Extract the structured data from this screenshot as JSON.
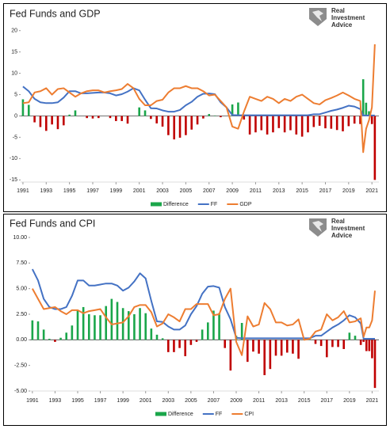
{
  "chart_data": [
    {
      "type": "combo",
      "title": "Fed Funds and GDP",
      "logo": [
        "Real",
        "Investment",
        "Advice"
      ],
      "x": [
        1991,
        1991.5,
        1992,
        1992.5,
        1993,
        1993.5,
        1994,
        1994.5,
        1995,
        1995.5,
        1996,
        1996.5,
        1997,
        1997.5,
        1998,
        1998.5,
        1999,
        1999.5,
        2000,
        2000.5,
        2001,
        2001.5,
        2002,
        2002.5,
        2003,
        2003.5,
        2004,
        2004.5,
        2005,
        2005.5,
        2006,
        2006.5,
        2007,
        2007.5,
        2008,
        2008.5,
        2009,
        2009.5,
        2010,
        2010.5,
        2011,
        2011.5,
        2012,
        2012.5,
        2013,
        2013.5,
        2014,
        2014.5,
        2015,
        2015.5,
        2016,
        2016.5,
        2017,
        2017.5,
        2018,
        2018.5,
        2019,
        2019.5,
        2020,
        2020.25,
        2020.5,
        2020.75,
        2021,
        2021.25
      ],
      "series": [
        {
          "name": "Difference",
          "type": "bar",
          "color": "#1aa64a",
          "negative_color": "#c00000",
          "values": [
            3.9,
            2.6,
            -1.5,
            -2.6,
            -3.5,
            -2.0,
            -3.1,
            -2.2,
            0.3,
            1.3,
            0.0,
            -0.5,
            -0.6,
            -0.5,
            0.0,
            -0.5,
            -1.2,
            -1.2,
            -1.8,
            0.0,
            2.0,
            1.3,
            -0.7,
            -1.75,
            -2.5,
            -4.5,
            -5.5,
            -5.1,
            -4.5,
            -3.2,
            -2.0,
            -0.6,
            0.45,
            0.1,
            -0.3,
            0.0,
            2.7,
            3.15,
            -0.85,
            -4.35,
            -3.85,
            -3.35,
            -4.35,
            -3.85,
            -2.85,
            -3.85,
            -3.35,
            -4.35,
            -4.85,
            -3.85,
            -2.6,
            -2.3,
            -2.9,
            -3.0,
            -3.3,
            -3.6,
            -2.4,
            -1.8,
            -1.9,
            8.6,
            3.1,
            1.1,
            -1.9,
            -15.0
          ]
        },
        {
          "name": "FF",
          "type": "line",
          "color": "#4472c4",
          "values": [
            6.9,
            5.8,
            4.0,
            3.2,
            3.0,
            3.0,
            3.2,
            4.3,
            5.8,
            5.8,
            5.3,
            5.3,
            5.4,
            5.5,
            5.5,
            5.3,
            4.8,
            5.1,
            5.7,
            6.5,
            6.0,
            3.8,
            1.8,
            1.75,
            1.3,
            1.0,
            1.0,
            1.4,
            2.5,
            3.3,
            4.5,
            5.2,
            5.25,
            5.1,
            3.2,
            2.0,
            0.2,
            0.15,
            0.15,
            0.15,
            0.15,
            0.15,
            0.15,
            0.15,
            0.15,
            0.15,
            0.15,
            0.15,
            0.15,
            0.15,
            0.4,
            0.4,
            0.8,
            1.2,
            1.5,
            1.9,
            2.4,
            2.2,
            1.6,
            0.1,
            0.1,
            0.1,
            0.1,
            0.1
          ]
        },
        {
          "name": "GDP",
          "type": "line",
          "color": "#ed7d31",
          "values": [
            3.0,
            3.2,
            5.5,
            5.8,
            6.5,
            5.0,
            6.3,
            6.5,
            5.5,
            4.5,
            5.3,
            5.8,
            6.0,
            6.0,
            5.5,
            5.8,
            6.0,
            6.3,
            7.5,
            6.5,
            4.0,
            2.5,
            2.5,
            3.5,
            3.8,
            5.5,
            6.5,
            6.5,
            7.0,
            6.5,
            6.5,
            5.8,
            4.8,
            5.0,
            3.5,
            2.0,
            -2.5,
            -3.0,
            1.0,
            4.5,
            4.0,
            3.5,
            4.5,
            4.0,
            3.0,
            4.0,
            3.5,
            4.5,
            5.0,
            4.0,
            3.0,
            2.7,
            3.7,
            4.2,
            4.8,
            5.5,
            4.8,
            4.0,
            3.5,
            -8.5,
            -3.0,
            -1.0,
            2.0,
            16.8
          ]
        }
      ],
      "xlim": [
        1990.8,
        2021.6
      ],
      "xticks": [
        1991,
        1993,
        1995,
        1997,
        1999,
        2001,
        2003,
        2005,
        2007,
        2009,
        2011,
        2013,
        2015,
        2017,
        2019,
        2021
      ],
      "ylim": [
        -15.5,
        20.5
      ],
      "yticks": [
        -15,
        -10,
        -5,
        0,
        5,
        10,
        15,
        20
      ],
      "grid": false,
      "legend": "bottom"
    },
    {
      "type": "combo",
      "title": "Fed Funds and CPI",
      "logo": [
        "Real",
        "Investment",
        "Advice"
      ],
      "x": [
        1991,
        1991.5,
        1992,
        1992.5,
        1993,
        1993.5,
        1994,
        1994.5,
        1995,
        1995.5,
        1996,
        1996.5,
        1997,
        1997.5,
        1998,
        1998.5,
        1999,
        1999.5,
        2000,
        2000.5,
        2001,
        2001.5,
        2002,
        2002.5,
        2003,
        2003.5,
        2004,
        2004.5,
        2005,
        2005.5,
        2006,
        2006.5,
        2007,
        2007.5,
        2008,
        2008.5,
        2009,
        2009.5,
        2010,
        2010.5,
        2011,
        2011.5,
        2012,
        2012.5,
        2013,
        2013.5,
        2014,
        2014.5,
        2015,
        2015.5,
        2016,
        2016.5,
        2017,
        2017.5,
        2018,
        2018.5,
        2019,
        2019.5,
        2020,
        2020.25,
        2020.5,
        2020.75,
        2021,
        2021.25
      ],
      "series": [
        {
          "name": "Difference",
          "type": "bar",
          "color": "#1aa64a",
          "negative_color": "#c00000",
          "values": [
            1.9,
            1.8,
            1.0,
            0.1,
            -0.2,
            0.2,
            0.7,
            1.4,
            2.9,
            3.2,
            2.5,
            2.4,
            2.4,
            3.3,
            4.0,
            3.7,
            3.1,
            2.8,
            2.5,
            3.1,
            2.6,
            1.1,
            0.5,
            0.15,
            -1.2,
            -1.2,
            -0.8,
            -1.6,
            -0.5,
            -0.2,
            1.0,
            1.7,
            2.85,
            2.6,
            -0.8,
            -3.0,
            0.4,
            1.65,
            -2.15,
            -1.15,
            -1.35,
            -3.45,
            -2.85,
            -1.55,
            -1.55,
            -1.25,
            -1.35,
            -1.85,
            0.15,
            0.05,
            -0.4,
            -0.6,
            -1.7,
            -0.7,
            -0.7,
            -0.9,
            0.7,
            0.4,
            -0.5,
            -0.2,
            -1.1,
            -1.1,
            -1.8,
            -4.7
          ]
        },
        {
          "name": "FF",
          "type": "line",
          "color": "#4472c4",
          "values": [
            6.9,
            5.8,
            4.0,
            3.2,
            3.0,
            3.0,
            3.2,
            4.3,
            5.8,
            5.8,
            5.3,
            5.3,
            5.4,
            5.5,
            5.5,
            5.3,
            4.8,
            5.1,
            5.7,
            6.5,
            6.0,
            3.8,
            1.8,
            1.75,
            1.3,
            1.0,
            1.0,
            1.4,
            2.5,
            3.3,
            4.5,
            5.2,
            5.25,
            5.1,
            3.2,
            2.0,
            0.2,
            0.15,
            0.15,
            0.15,
            0.15,
            0.15,
            0.15,
            0.15,
            0.15,
            0.15,
            0.15,
            0.15,
            0.15,
            0.15,
            0.4,
            0.4,
            0.8,
            1.2,
            1.5,
            1.9,
            2.4,
            2.2,
            1.6,
            0.1,
            0.1,
            0.1,
            0.1,
            0.1
          ]
        },
        {
          "name": "CPI",
          "type": "line",
          "color": "#ed7d31",
          "values": [
            5.0,
            4.0,
            3.0,
            3.1,
            3.2,
            2.8,
            2.5,
            2.9,
            2.9,
            2.6,
            2.8,
            2.9,
            3.0,
            2.2,
            1.5,
            1.6,
            1.7,
            2.3,
            3.2,
            3.4,
            3.4,
            2.7,
            1.3,
            1.6,
            2.5,
            2.2,
            1.8,
            3.0,
            3.0,
            3.5,
            3.5,
            3.5,
            2.4,
            2.5,
            4.0,
            5.0,
            -0.2,
            -1.5,
            2.3,
            1.3,
            1.5,
            3.6,
            3.0,
            1.7,
            1.7,
            1.4,
            1.5,
            2.0,
            0.0,
            0.1,
            0.8,
            1.0,
            2.5,
            1.9,
            2.2,
            2.8,
            1.7,
            1.8,
            2.1,
            0.3,
            1.2,
            1.2,
            1.9,
            4.8
          ]
        }
      ],
      "xlim": [
        1990.8,
        2021.6
      ],
      "xticks": [
        1991,
        1993,
        1995,
        1997,
        1999,
        2001,
        2003,
        2005,
        2007,
        2009,
        2011,
        2013,
        2015,
        2017,
        2019,
        2021
      ],
      "ylim": [
        -5,
        10
      ],
      "yticks": [
        {
          "value": -5,
          "label": "-5.00"
        },
        {
          "value": -2.5,
          "label": "-2.50"
        },
        {
          "value": 0,
          "label": "0.00"
        },
        {
          "value": 2.5,
          "label": "2.50"
        },
        {
          "value": 5,
          "label": "5.00"
        },
        {
          "value": 7.5,
          "label": "7.50"
        },
        {
          "value": 10,
          "label": "10.00"
        }
      ],
      "grid": false,
      "legend": "bottom"
    }
  ]
}
